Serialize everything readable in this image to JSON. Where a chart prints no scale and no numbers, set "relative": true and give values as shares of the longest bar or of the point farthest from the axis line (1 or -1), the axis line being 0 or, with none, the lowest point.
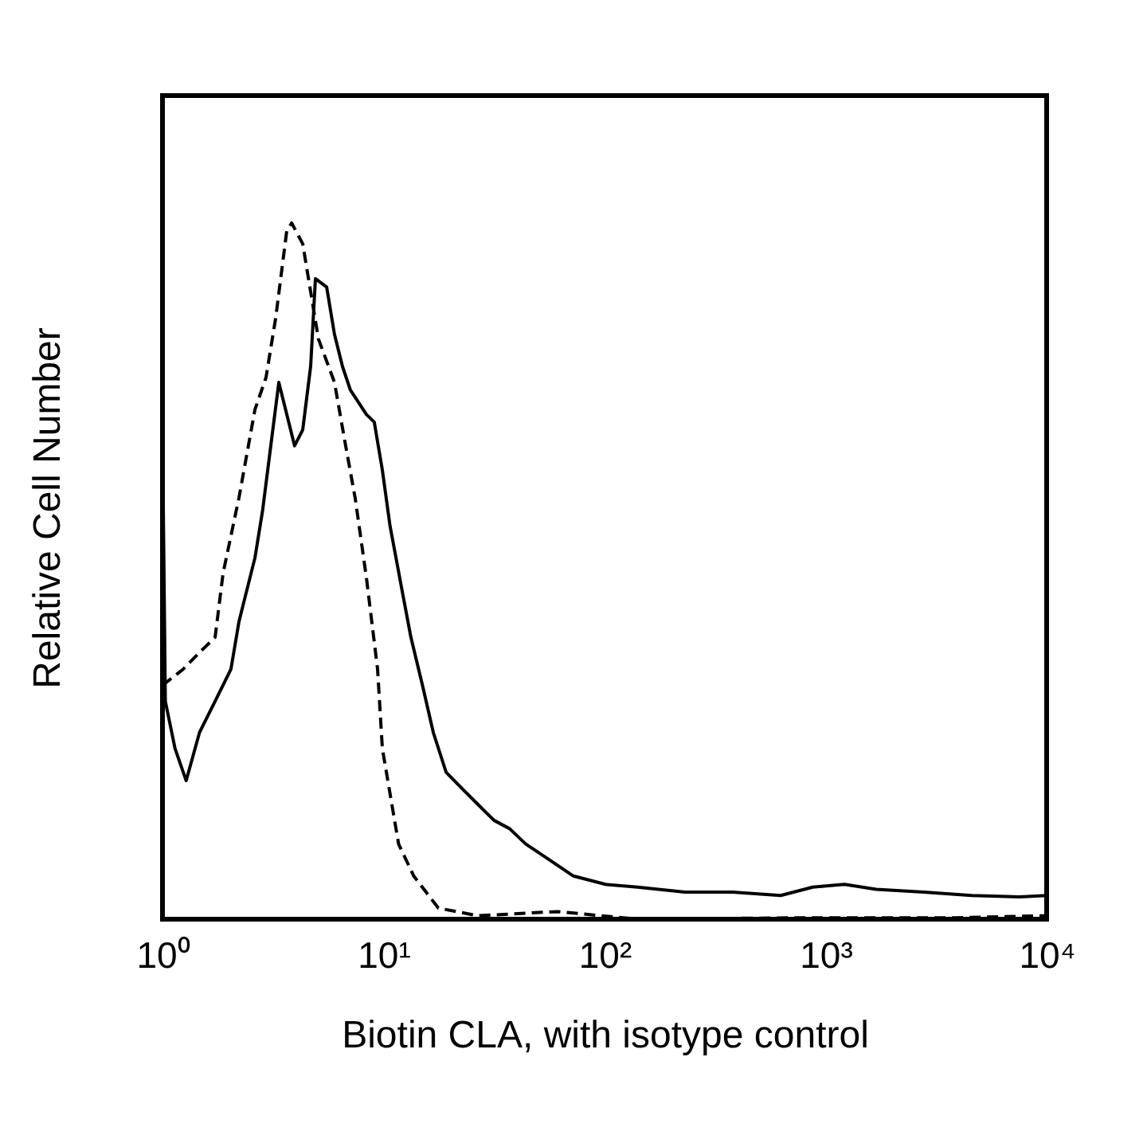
{
  "chart_data": {
    "type": "line",
    "xlabel": "Biotin CLA, with isotype control",
    "ylabel": "Relative Cell Number",
    "log": "x",
    "relative": true,
    "grid": false,
    "marker": "none",
    "xlim": [
      1,
      10000
    ],
    "xticks": [
      {
        "value": 1,
        "label": "10⁰"
      },
      {
        "value": 10,
        "label": "10¹"
      },
      {
        "value": 100,
        "label": "10²"
      },
      {
        "value": 1000,
        "label": "10³"
      },
      {
        "value": 10000,
        "label": "10⁴"
      }
    ],
    "series": [
      {
        "color": "#000000",
        "line_style": "solid",
        "x": [
          1,
          1.03,
          1.14,
          1.28,
          1.47,
          1.73,
          2.04,
          2.22,
          2.62,
          2.84,
          3.09,
          3.36,
          3.65,
          3.96,
          4.31,
          4.68,
          4.92,
          5.53,
          6.0,
          6.52,
          7.08,
          8.37,
          9.08,
          9.88,
          10.7,
          12.1,
          13.3,
          15.0,
          16.8,
          19.2,
          22.6,
          26.7,
          31.6,
          37.2,
          44.0,
          56.4,
          72.3,
          101,
          141,
          231,
          380,
          626,
          873,
          1216,
          1694,
          2787,
          4583,
          7536,
          10000
        ],
        "values": [
          0.703,
          0.313,
          0.245,
          0.199,
          0.268,
          0.313,
          0.359,
          0.428,
          0.519,
          0.588,
          0.68,
          0.771,
          0.725,
          0.68,
          0.703,
          0.794,
          0.92,
          0.908,
          0.84,
          0.794,
          0.76,
          0.725,
          0.714,
          0.645,
          0.565,
          0.474,
          0.405,
          0.336,
          0.268,
          0.211,
          0.188,
          0.165,
          0.142,
          0.13,
          0.108,
          0.085,
          0.062,
          0.05,
          0.046,
          0.039,
          0.039,
          0.034,
          0.046,
          0.05,
          0.043,
          0.039,
          0.034,
          0.032,
          0.034
        ]
      },
      {
        "color": "#000000",
        "line_style": "dashed",
        "x": [
          1,
          1.24,
          1.47,
          1.73,
          1.88,
          2.22,
          2.62,
          2.94,
          3.25,
          3.65,
          3.84,
          4.31,
          5.08,
          6.0,
          6.74,
          7.45,
          8.37,
          9.4,
          9.88,
          11.7,
          13.7,
          17.7,
          26.7,
          61.3,
          141,
          739,
          3880,
          10000
        ],
        "values": [
          0.336,
          0.359,
          0.383,
          0.405,
          0.497,
          0.606,
          0.732,
          0.778,
          0.863,
          0.989,
          1,
          0.97,
          0.833,
          0.771,
          0.68,
          0.604,
          0.49,
          0.359,
          0.245,
          0.108,
          0.062,
          0.016,
          0.005,
          0.011,
          0,
          0.002,
          0.002,
          0.005
        ]
      }
    ]
  }
}
